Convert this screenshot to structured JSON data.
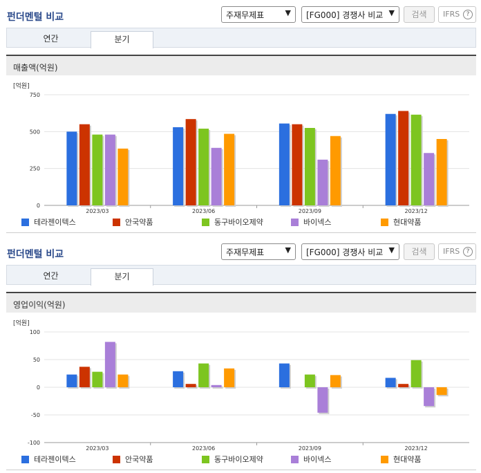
{
  "sections": [
    {
      "title": "펀더멘털 비교",
      "select_statement": "주재무제표",
      "select_compare": "[FG000] 경쟁사 비교",
      "search_label": "검색",
      "ifrs_label": "IFRS",
      "help_glyph": "?",
      "tabs": [
        "연간",
        "분기"
      ],
      "active_tab": "분기",
      "chart_title": "매출액(억원)"
    },
    {
      "title": "펀더멘털 비교",
      "select_statement": "주재무제표",
      "select_compare": "[FG000] 경쟁사 비교",
      "search_label": "검색",
      "ifrs_label": "IFRS",
      "help_glyph": "?",
      "tabs": [
        "연간",
        "분기"
      ],
      "active_tab": "분기",
      "chart_title": "영업이익(억원)"
    }
  ],
  "chart_data": [
    {
      "type": "bar",
      "unit_label": "[억원]",
      "categories": [
        "2023/03",
        "2023/06",
        "2023/09",
        "2023/12"
      ],
      "ylim": [
        0,
        750
      ],
      "yticks": [
        0,
        250,
        500,
        750
      ],
      "series": [
        {
          "name": "테라젠이텍스",
          "color": "#2b6fdf",
          "values": [
            500,
            530,
            555,
            620
          ]
        },
        {
          "name": "안국약품",
          "color": "#cc3300",
          "values": [
            550,
            585,
            550,
            640
          ]
        },
        {
          "name": "동구바이오제약",
          "color": "#7dc520",
          "values": [
            480,
            520,
            525,
            615
          ]
        },
        {
          "name": "바이넥스",
          "color": "#a97fd8",
          "values": [
            480,
            390,
            310,
            355
          ]
        },
        {
          "name": "현대약품",
          "color": "#ff9a00",
          "values": [
            385,
            485,
            470,
            450
          ]
        }
      ]
    },
    {
      "type": "bar",
      "unit_label": "[억원]",
      "categories": [
        "2023/03",
        "2023/06",
        "2023/09",
        "2023/12"
      ],
      "ylim": [
        -100,
        100
      ],
      "yticks": [
        -100,
        -50,
        0,
        50,
        100
      ],
      "series": [
        {
          "name": "테라젠이텍스",
          "color": "#2b6fdf",
          "values": [
            23,
            29,
            43,
            17
          ]
        },
        {
          "name": "안국약품",
          "color": "#cc3300",
          "values": [
            37,
            6,
            0,
            6
          ]
        },
        {
          "name": "동구바이오제약",
          "color": "#7dc520",
          "values": [
            28,
            43,
            23,
            49
          ]
        },
        {
          "name": "바이넥스",
          "color": "#a97fd8",
          "values": [
            82,
            4,
            -46,
            -34
          ]
        },
        {
          "name": "현대약품",
          "color": "#ff9a00",
          "values": [
            23,
            34,
            22,
            -14
          ]
        }
      ]
    }
  ]
}
